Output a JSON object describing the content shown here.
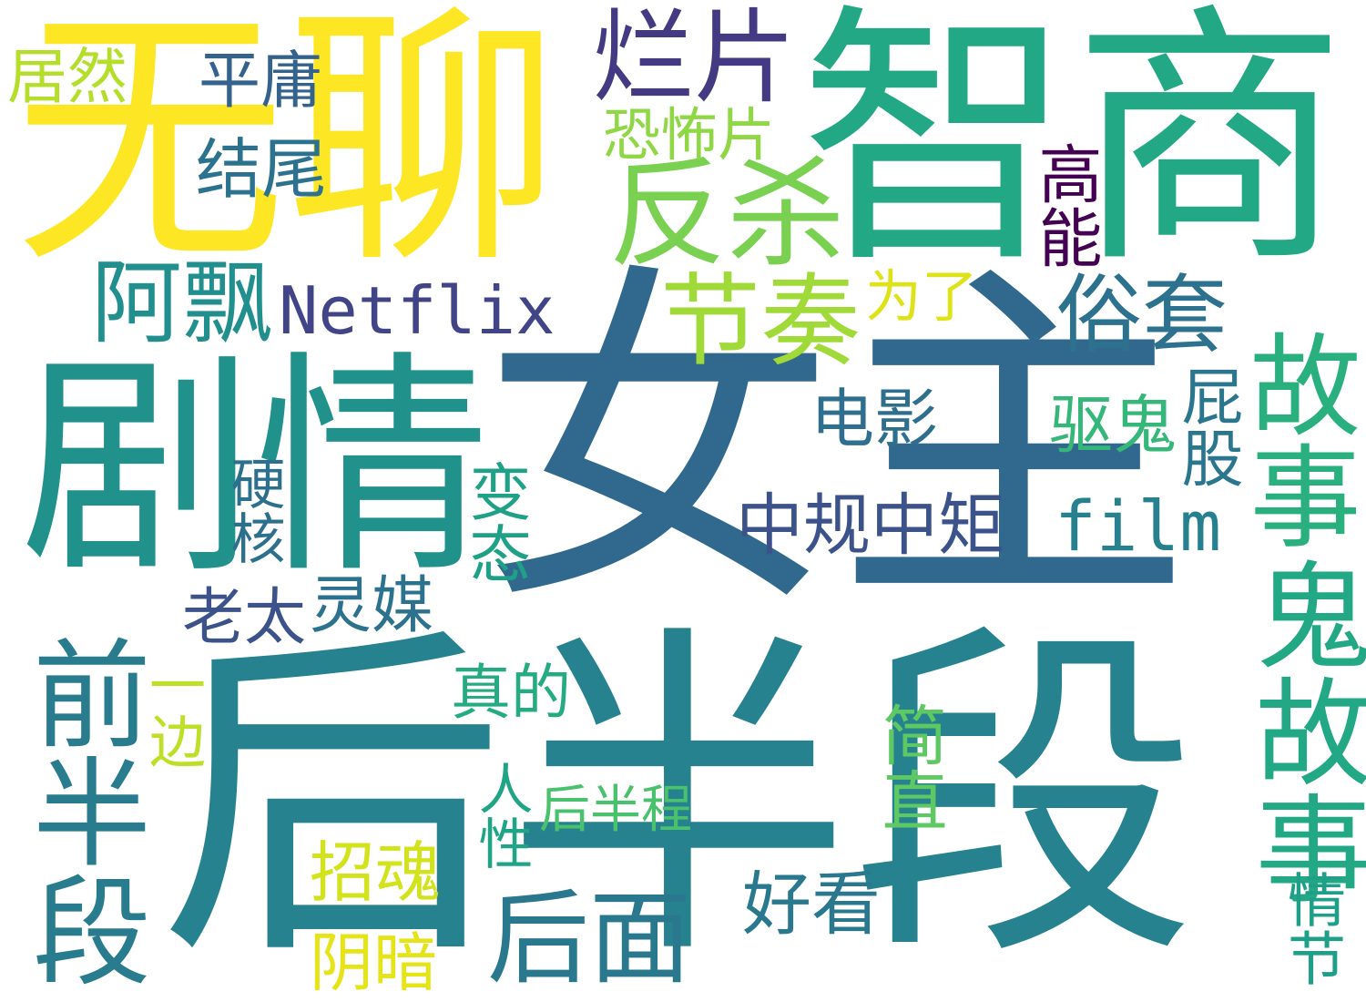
{
  "words": [
    {
      "text": "女主",
      "color": "#31688e",
      "vertical": false
    },
    {
      "text": "后半段",
      "color": "#26828e",
      "vertical": false
    },
    {
      "text": "智商",
      "color": "#22a884",
      "vertical": false
    },
    {
      "text": "无聊",
      "color": "#fde725",
      "vertical": false
    },
    {
      "text": "剧情",
      "color": "#21918c",
      "vertical": false
    },
    {
      "text": "反杀",
      "color": "#7ad151",
      "vertical": false
    },
    {
      "text": "烂片",
      "color": "#443a83",
      "vertical": false
    },
    {
      "text": "节奏",
      "color": "#a0da39",
      "vertical": false
    },
    {
      "text": "故事",
      "color": "#2ab07f",
      "vertical": true
    },
    {
      "text": "鬼故事",
      "color": "#22a884",
      "vertical": true
    },
    {
      "text": "前半段",
      "color": "#287c8e",
      "vertical": true
    },
    {
      "text": "后面",
      "color": "#2a788e",
      "vertical": false
    },
    {
      "text": "Netflix",
      "color": "#414487",
      "vertical": false
    },
    {
      "text": "阿飘",
      "color": "#218f8d",
      "vertical": false
    },
    {
      "text": "俗套",
      "color": "#2c718e",
      "vertical": false
    },
    {
      "text": "居然",
      "color": "#b5de2b",
      "vertical": false
    },
    {
      "text": "平庸",
      "color": "#33638d",
      "vertical": false
    },
    {
      "text": "结尾",
      "color": "#2c728e",
      "vertical": false
    },
    {
      "text": "恐怖片",
      "color": "#8fd744",
      "vertical": false
    },
    {
      "text": "高能",
      "color": "#440154",
      "vertical": true
    },
    {
      "text": "为了",
      "color": "#dde318",
      "vertical": false
    },
    {
      "text": "电影",
      "color": "#2e6e8e",
      "vertical": false
    },
    {
      "text": "驱鬼",
      "color": "#35b779",
      "vertical": false
    },
    {
      "text": "屁股",
      "color": "#2a768e",
      "vertical": true
    },
    {
      "text": "中规中矩",
      "color": "#3b528b",
      "vertical": false
    },
    {
      "text": "film",
      "color": "#27808e",
      "vertical": false
    },
    {
      "text": "变态",
      "color": "#1fa187",
      "vertical": true
    },
    {
      "text": "硬核",
      "color": "#2d708e",
      "vertical": true
    },
    {
      "text": "老太",
      "color": "#3b528b",
      "vertical": false
    },
    {
      "text": "灵媒",
      "color": "#2c728e",
      "vertical": false
    },
    {
      "text": "一边",
      "color": "#bddf26",
      "vertical": true
    },
    {
      "text": "真的",
      "color": "#25ab82",
      "vertical": false
    },
    {
      "text": "好看",
      "color": "#2a788e",
      "vertical": false
    },
    {
      "text": "简直",
      "color": "#5ec962",
      "vertical": true
    },
    {
      "text": "人性",
      "color": "#20a486",
      "vertical": true
    },
    {
      "text": "后半程",
      "color": "#4ac16d",
      "vertical": false
    },
    {
      "text": "招魂",
      "color": "#d2e21b",
      "vertical": false
    },
    {
      "text": "阴暗",
      "color": "#e5e419",
      "vertical": false
    },
    {
      "text": "情节",
      "color": "#1f9f88",
      "vertical": true
    }
  ]
}
